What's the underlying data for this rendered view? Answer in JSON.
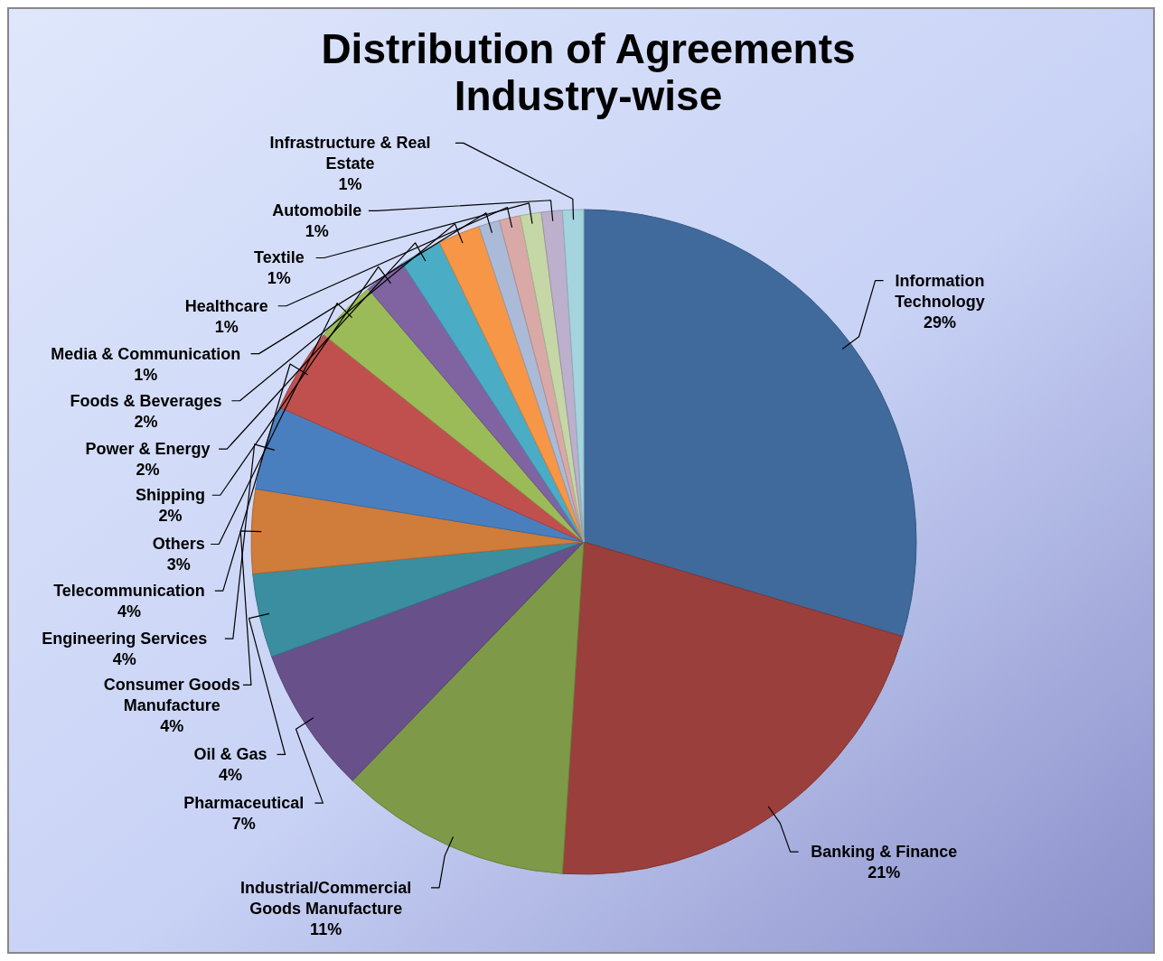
{
  "chart_data": {
    "type": "pie",
    "title": "Distribution of Agreements Industry-wise",
    "categories": [
      "Information Technology",
      "Banking & Finance",
      "Industrial/Commercial Goods Manufacture",
      "Pharmaceutical",
      "Oil & Gas",
      "Consumer Goods Manufacture",
      "Engineering Services",
      "Telecommunication",
      "Others",
      "Shipping",
      "Power & Energy",
      "Foods & Beverages",
      "Media & Communication",
      "Healthcare",
      "Textile",
      "Automobile",
      "Infrastructure & Real Estate"
    ],
    "values": [
      29,
      21,
      11,
      7,
      4,
      4,
      4,
      4,
      3,
      2,
      2,
      2,
      1,
      1,
      1,
      1,
      1
    ],
    "colors": [
      "#3f6a9b",
      "#9b3f3d",
      "#7e9a48",
      "#68508a",
      "#3a8ea0",
      "#d07c3a",
      "#4a7fbf",
      "#c0504d",
      "#9bbb59",
      "#8064a2",
      "#4bacc6",
      "#f79646",
      "#aabad7",
      "#d9a9a8",
      "#c5d7a6",
      "#bcb0cc",
      "#a5d3de"
    ],
    "value_labels": [
      "29%",
      "21%",
      "11%",
      "7%",
      "4%",
      "4%",
      "4%",
      "4%",
      "3%",
      "2%",
      "2%",
      "2%",
      "1%",
      "1%",
      "1%",
      "1%",
      "1%"
    ]
  }
}
